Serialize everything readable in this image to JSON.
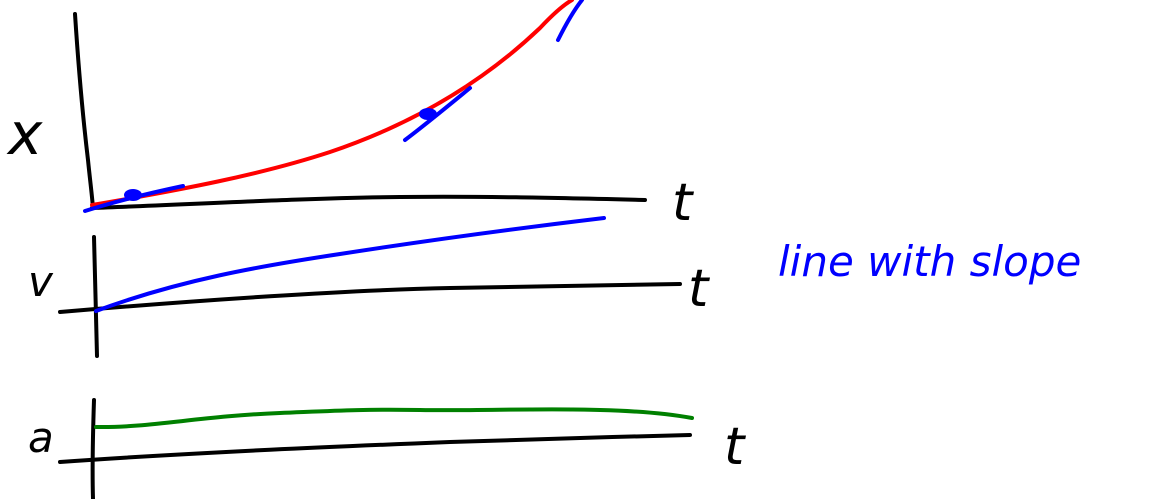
{
  "colors": {
    "axes": "#000000",
    "position_curve": "#ff0000",
    "velocity_and_tangents": "#0000ff",
    "acceleration": "#008000",
    "annotation": "#0000ff"
  },
  "graphs": {
    "position": {
      "y_label": "x",
      "x_label": "t"
    },
    "velocity": {
      "y_label": "v",
      "x_label": "t",
      "note": "line with slope"
    },
    "acceleration": {
      "y_label": "a",
      "x_label": "t"
    }
  }
}
